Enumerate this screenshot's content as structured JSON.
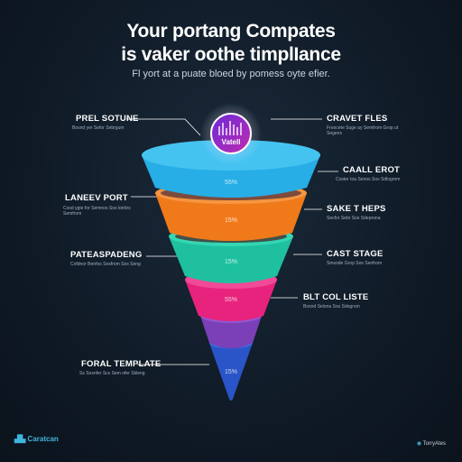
{
  "title_line1": "Your portang Compates",
  "title_line2": "is vaker oothe timplIance",
  "subtitle": "Fl yort at a puate bloed by pomess oyte efier.",
  "center_icon_text": "Vatell",
  "stages": [
    {
      "percent": "55%",
      "color": "#27aee6"
    },
    {
      "percent": "15%",
      "color": "#f07a1a"
    },
    {
      "percent": "15%",
      "color": "#1fc0a0"
    },
    {
      "percent": "55%",
      "color": "#e8237d"
    },
    {
      "percent": "",
      "color": "#7b3fb8"
    },
    {
      "percent": "15%",
      "color": "#2a55c8"
    }
  ],
  "labels_left": [
    {
      "title": "PREL SOTUNE",
      "desc": "Bosnd yer Sefor Sebrgum"
    },
    {
      "title": "LANEEV PORT",
      "desc": "Cosd ygte for Semnos Sos toirbrs Semfrom"
    },
    {
      "title": "PATEASPADENG",
      "desc": "Cofdnor Benfos Sosfrom Sos Seng"
    },
    {
      "title": "FORAL TEMPLATE",
      "desc": "Ss Sosnfer Scs Sem ofer Skleng"
    }
  ],
  "labels_right": [
    {
      "title": "CRAVET FLES",
      "desc": "Froocete Suge ay Semfrom Grop ut Segens"
    },
    {
      "title": "CAALL EROT",
      "desc": "Coster toa Senos Sos Sdlogrom"
    },
    {
      "title": "SAKE T HEPS",
      "desc": "Secfor Sebr Sos Sdeprona"
    },
    {
      "title": "CAST STAGE",
      "desc": "Smxode Grop Sos Senfrom"
    },
    {
      "title": "BLT COL LISTE",
      "desc": "Bosnd Selona Sos Sdogrom"
    }
  ],
  "logo_left": "Caratcan",
  "logo_right": "TorryAtes"
}
